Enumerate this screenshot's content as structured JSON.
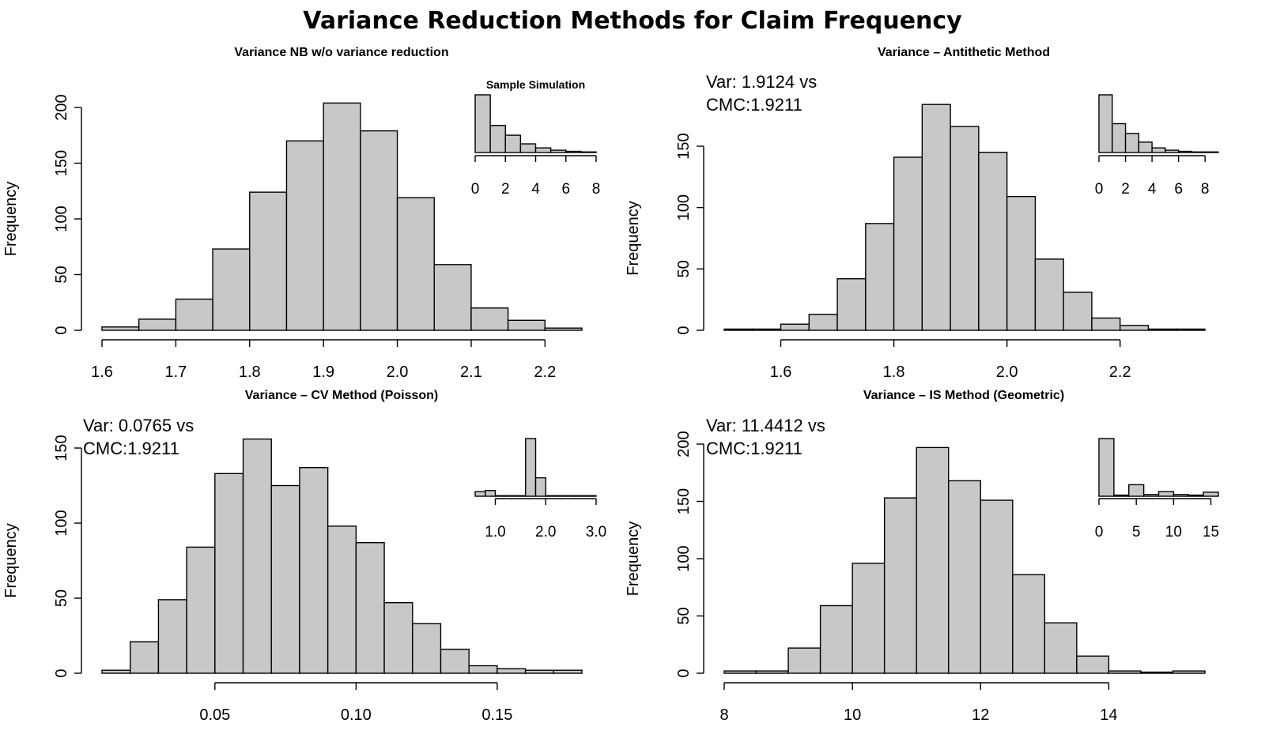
{
  "figure": {
    "title": "Variance Reduction Methods for Claim Frequency"
  },
  "chart_data": [
    {
      "type": "bar",
      "title": "Variance NB w/o variance reduction",
      "ylabel": "Frequency",
      "xlabel": "",
      "bin_edges": [
        1.6,
        1.65,
        1.7,
        1.75,
        1.8,
        1.85,
        1.9,
        1.95,
        2.0,
        2.05,
        2.1,
        2.15,
        2.2,
        2.25
      ],
      "values": [
        3,
        10,
        28,
        73,
        124,
        170,
        204,
        179,
        119,
        59,
        20,
        9,
        2
      ],
      "xlim": [
        1.6,
        2.25
      ],
      "ylim": [
        0,
        200
      ],
      "xticks": [
        1.6,
        1.7,
        1.8,
        1.9,
        2.0,
        2.1,
        2.2
      ],
      "xtick_labels": [
        "1.6",
        "1.7",
        "1.8",
        "1.9",
        "2.0",
        "2.1",
        "2.2"
      ],
      "yticks": [
        0,
        50,
        100,
        150,
        200
      ],
      "ytick_labels": [
        "0",
        "50",
        "100",
        "150",
        "200"
      ],
      "annotation": [],
      "inset": {
        "title": "Sample Simulation",
        "bin_edges": [
          0,
          1,
          2,
          3,
          4,
          5,
          6,
          7,
          8
        ],
        "values": [
          100,
          47,
          30,
          15,
          8,
          4,
          2,
          1
        ],
        "xticks": [
          0,
          2,
          4,
          6,
          8
        ],
        "xtick_labels": [
          "0",
          "2",
          "4",
          "6",
          "8"
        ]
      }
    },
    {
      "type": "bar",
      "title": "Variance – Antithetic Method",
      "ylabel": "Frequency",
      "xlabel": "",
      "bin_edges": [
        1.5,
        1.55,
        1.6,
        1.65,
        1.7,
        1.75,
        1.8,
        1.85,
        1.9,
        1.95,
        2.0,
        2.05,
        2.1,
        2.15,
        2.2,
        2.25,
        2.3,
        2.35
      ],
      "values": [
        1,
        1,
        5,
        13,
        42,
        87,
        141,
        184,
        166,
        145,
        109,
        58,
        31,
        10,
        4,
        1,
        1
      ],
      "xlim": [
        1.5,
        2.35
      ],
      "ylim": [
        0,
        150
      ],
      "xticks": [
        1.6,
        1.8,
        2.0,
        2.2
      ],
      "xtick_labels": [
        "1.6",
        "1.8",
        "2.0",
        "2.2"
      ],
      "yticks": [
        0,
        50,
        100,
        150
      ],
      "ytick_labels": [
        "0",
        "50",
        "100",
        "150"
      ],
      "annotation": [
        "Var: 1.9124 vs",
        "CMC:1.9211"
      ],
      "inset": {
        "title": "",
        "bin_edges": [
          0,
          1,
          2,
          3,
          4,
          5,
          6,
          7,
          8,
          9
        ],
        "values": [
          100,
          50,
          33,
          18,
          8,
          4,
          2,
          1,
          1
        ],
        "xticks": [
          0,
          2,
          4,
          6,
          8
        ],
        "xtick_labels": [
          "0",
          "2",
          "4",
          "6",
          "8"
        ]
      }
    },
    {
      "type": "bar",
      "title": "Variance – CV Method (Poisson)",
      "ylabel": "Frequency",
      "xlabel": "",
      "bin_edges": [
        0.01,
        0.02,
        0.03,
        0.04,
        0.05,
        0.06,
        0.07,
        0.08,
        0.09,
        0.1,
        0.11,
        0.12,
        0.13,
        0.14,
        0.15,
        0.16,
        0.17,
        0.18
      ],
      "values": [
        2,
        21,
        49,
        84,
        133,
        156,
        125,
        137,
        98,
        87,
        47,
        33,
        16,
        5,
        3,
        2,
        2
      ],
      "xlim": [
        0.01,
        0.18
      ],
      "ylim": [
        0,
        150
      ],
      "xticks": [
        0.05,
        0.1,
        0.15
      ],
      "xtick_labels": [
        "0.05",
        "0.10",
        "0.15"
      ],
      "yticks": [
        0,
        50,
        100,
        150
      ],
      "ytick_labels": [
        "0",
        "50",
        "100",
        "150"
      ],
      "annotation": [
        "Var: 0.0765 vs",
        "CMC:1.9211"
      ],
      "inset": {
        "title": "",
        "bin_edges": [
          0.6,
          0.8,
          1.0,
          1.2,
          1.4,
          1.6,
          1.8,
          2.0,
          2.2,
          2.4,
          2.6,
          2.8,
          3.0
        ],
        "values": [
          8,
          10,
          1,
          1,
          1,
          100,
          32,
          1,
          1,
          1,
          1,
          1
        ],
        "xticks": [
          1.0,
          2.0,
          3.0
        ],
        "xtick_labels": [
          "1.0",
          "2.0",
          "3.0"
        ]
      }
    },
    {
      "type": "bar",
      "title": "Variance – IS Method (Geometric)",
      "ylabel": "Frequency",
      "xlabel": "",
      "bin_edges": [
        8.0,
        8.5,
        9.0,
        9.5,
        10.0,
        10.5,
        11.0,
        11.5,
        12.0,
        12.5,
        13.0,
        13.5,
        14.0,
        14.5,
        15.0,
        15.5
      ],
      "values": [
        2,
        2,
        22,
        59,
        96,
        153,
        197,
        168,
        151,
        86,
        44,
        15,
        2,
        1,
        2
      ],
      "xlim": [
        8,
        15.5
      ],
      "ylim": [
        0,
        200
      ],
      "xticks": [
        8,
        10,
        12,
        14
      ],
      "xtick_labels": [
        "8",
        "10",
        "12",
        "14"
      ],
      "yticks": [
        0,
        50,
        100,
        150,
        200
      ],
      "ytick_labels": [
        "0",
        "50",
        "100",
        "150",
        "200"
      ],
      "annotation": [
        "Var: 11.4412 vs",
        "CMC:1.9211"
      ],
      "inset": {
        "title": "",
        "bin_edges": [
          0,
          2,
          4,
          6,
          8,
          10,
          12,
          14,
          16
        ],
        "values": [
          100,
          2,
          20,
          3,
          8,
          3,
          2,
          7
        ],
        "xticks": [
          0,
          5,
          10,
          15
        ],
        "xtick_labels": [
          "0",
          "5",
          "10",
          "15"
        ]
      }
    }
  ]
}
